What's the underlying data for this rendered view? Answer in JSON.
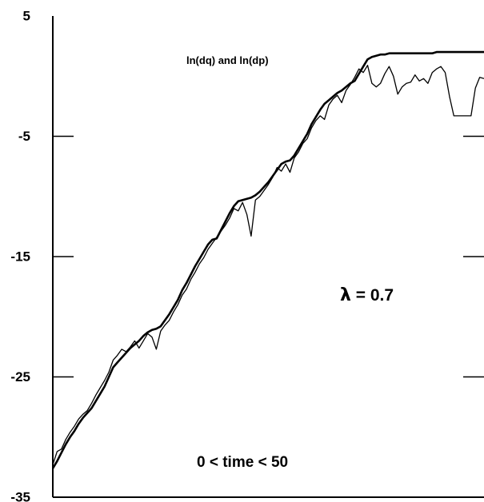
{
  "chart_data": {
    "type": "line",
    "title": "ln(dq) and ln(dp)",
    "xlabel": "",
    "ylabel": "",
    "xlim": [
      0,
      50
    ],
    "ylim": [
      -35,
      5
    ],
    "grid": false,
    "yticks": [
      5,
      -5,
      -15,
      -25,
      -35
    ],
    "ytick_labels": [
      "5",
      "-5",
      "-15",
      "-25",
      "-35"
    ],
    "annotations": {
      "lambda_symbol": "λ",
      "lambda_text": " = 0.7",
      "time_range": "0 < time < 50"
    },
    "colors": {
      "line": "#000000",
      "background": "#ffffff"
    },
    "series": [
      {
        "x": [
          0,
          0.5,
          1,
          1.5,
          2,
          2.5,
          3,
          3.5,
          4,
          4.5,
          5,
          5.5,
          6,
          6.5,
          7,
          7.5,
          8,
          8.5,
          9,
          9.5,
          10,
          10.5,
          11,
          11.5,
          12,
          12.5,
          13,
          13.5,
          14,
          14.5,
          15,
          15.5,
          16,
          16.5,
          17,
          17.5,
          18,
          18.5,
          19,
          19.5,
          20,
          20.5,
          21,
          21.5,
          22,
          22.5,
          23,
          23.5,
          24,
          24.5,
          25,
          25.5,
          26,
          26.5,
          27,
          27.5,
          28,
          28.5,
          29,
          29.5,
          30,
          30.5,
          31,
          31.5,
          32,
          32.5,
          33,
          33.5,
          34,
          34.5,
          35,
          35.5,
          36,
          36.5,
          37,
          37.5,
          38,
          38.5,
          39,
          39.5,
          40,
          40.5,
          41,
          41.5,
          42,
          42.5,
          43,
          43.5,
          44,
          44.5,
          45,
          45.5,
          46,
          46.5,
          47,
          47.5,
          48,
          48.5,
          49,
          49.5,
          50
        ],
        "values": [
          -32.6,
          -32.0,
          -31.3,
          -30.6,
          -30.0,
          -29.5,
          -28.9,
          -28.4,
          -28.0,
          -27.6,
          -27.0,
          -26.4,
          -25.8,
          -25.0,
          -24.2,
          -23.8,
          -23.4,
          -23.0,
          -22.6,
          -22.3,
          -22.0,
          -21.6,
          -21.3,
          -21.1,
          -21.0,
          -20.8,
          -20.3,
          -19.8,
          -19.2,
          -18.6,
          -17.8,
          -17.2,
          -16.5,
          -15.8,
          -15.2,
          -14.6,
          -14.0,
          -13.6,
          -13.5,
          -12.8,
          -12.1,
          -11.4,
          -10.8,
          -10.4,
          -10.3,
          -10.2,
          -10.1,
          -9.9,
          -9.6,
          -9.2,
          -8.8,
          -8.3,
          -7.8,
          -7.3,
          -7.1,
          -7.0,
          -6.6,
          -6.0,
          -5.4,
          -4.8,
          -4.0,
          -3.4,
          -2.8,
          -2.3,
          -2.0,
          -1.7,
          -1.4,
          -1.2,
          -0.9,
          -0.6,
          -0.4,
          0.2,
          0.8,
          1.4,
          1.6,
          1.7,
          1.8,
          1.8,
          1.9,
          1.9,
          1.9,
          1.9,
          1.9,
          1.9,
          1.9,
          1.9,
          1.9,
          1.9,
          1.9,
          2.0,
          2.0,
          2.0,
          2.0,
          2.0,
          2.0,
          2.0,
          2.0,
          2.0,
          2.0,
          2.0,
          2.0
        ]
      },
      {
        "x": [
          0,
          0.5,
          1,
          1.5,
          2,
          2.5,
          3,
          3.5,
          4,
          4.5,
          5,
          5.5,
          6,
          6.5,
          7,
          7.5,
          8,
          8.5,
          9,
          9.5,
          10,
          10.5,
          11,
          11.5,
          12,
          12.5,
          13,
          13.5,
          14,
          14.5,
          15,
          15.5,
          16,
          16.5,
          17,
          17.5,
          18,
          18.5,
          19,
          19.5,
          20,
          20.5,
          21,
          21.5,
          22,
          22.5,
          23,
          23.5,
          24,
          24.5,
          25,
          25.5,
          26,
          26.5,
          27,
          27.5,
          28,
          28.5,
          29,
          29.5,
          30,
          30.5,
          31,
          31.5,
          32,
          32.5,
          33,
          33.5,
          34,
          34.5,
          35,
          35.5,
          36,
          36.5,
          37,
          37.5,
          38,
          38.5,
          39,
          39.5,
          40,
          40.5,
          41,
          41.5,
          42,
          42.5,
          43,
          43.5,
          44,
          44.5,
          45,
          45.5,
          46,
          46.5,
          47,
          47.5,
          48,
          48.5,
          49,
          49.5,
          50
        ],
        "values": [
          -32.3,
          -31.2,
          -31.0,
          -30.2,
          -29.6,
          -29.1,
          -28.5,
          -28.1,
          -27.8,
          -27.2,
          -26.5,
          -25.9,
          -25.3,
          -24.6,
          -23.6,
          -23.2,
          -22.7,
          -22.9,
          -22.5,
          -22.0,
          -22.6,
          -22.0,
          -21.4,
          -21.7,
          -22.7,
          -21.2,
          -20.7,
          -20.3,
          -19.6,
          -19.0,
          -18.2,
          -17.7,
          -16.9,
          -16.3,
          -15.6,
          -15.1,
          -14.4,
          -13.9,
          -13.4,
          -12.9,
          -12.4,
          -11.8,
          -11.0,
          -11.2,
          -10.5,
          -11.5,
          -13.3,
          -10.3,
          -10.0,
          -9.5,
          -9.0,
          -8.4,
          -7.6,
          -7.9,
          -7.3,
          -8.0,
          -6.8,
          -6.3,
          -5.6,
          -5.2,
          -4.3,
          -3.7,
          -3.3,
          -3.6,
          -2.4,
          -1.9,
          -1.6,
          -2.2,
          -1.2,
          -0.7,
          -0.1,
          0.6,
          0.3,
          0.9,
          -0.6,
          -0.9,
          -0.6,
          0.2,
          0.8,
          0.0,
          -1.5,
          -0.9,
          -0.6,
          -0.5,
          0.1,
          -0.4,
          -0.2,
          -0.6,
          0.3,
          0.6,
          0.8,
          0.3,
          -1.7,
          -3.3,
          -3.3,
          -3.3,
          -3.3,
          -3.3,
          -1.0,
          -0.1,
          -0.2
        ]
      }
    ]
  }
}
